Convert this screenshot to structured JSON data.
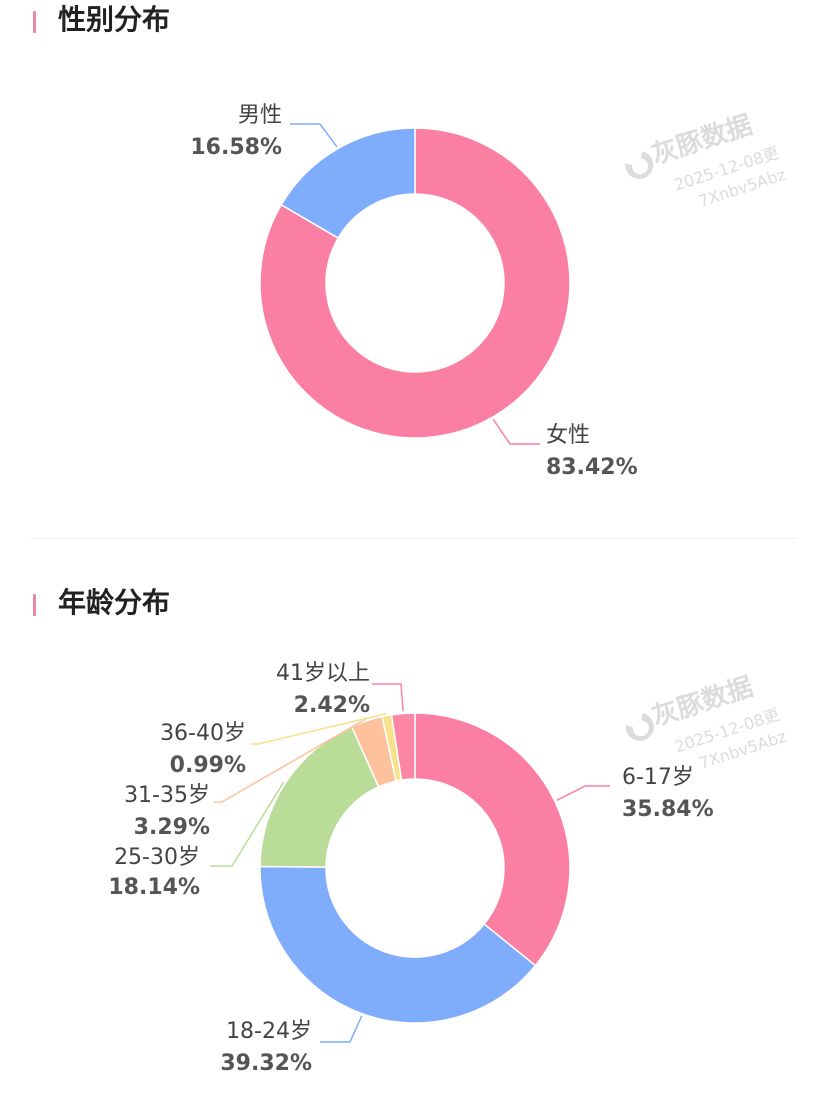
{
  "chart_data": [
    {
      "type": "pie",
      "title": "性别分布",
      "categories": [
        "女性",
        "男性"
      ],
      "values": [
        83.42,
        16.58
      ],
      "value_labels": [
        "83.42%",
        "16.58%"
      ],
      "colors": [
        "#fb7fa2",
        "#80adfb"
      ],
      "donut": true
    },
    {
      "type": "pie",
      "title": "年龄分布",
      "categories": [
        "6-17岁",
        "18-24岁",
        "25-30岁",
        "31-35岁",
        "36-40岁",
        "41岁以上"
      ],
      "values": [
        35.84,
        39.32,
        18.14,
        3.29,
        0.99,
        2.42
      ],
      "value_labels": [
        "35.84%",
        "39.32%",
        "18.14%",
        "3.29%",
        "0.99%",
        "2.42%"
      ],
      "colors": [
        "#fb7fa2",
        "#80adfb",
        "#badc99",
        "#fdc19b",
        "#f7e18d",
        "#fc86a3"
      ],
      "donut": true
    }
  ],
  "watermark": {
    "brand": "灰豚数据",
    "line1": "2025-12-08更",
    "line2": "7Xnbv5Abz"
  }
}
